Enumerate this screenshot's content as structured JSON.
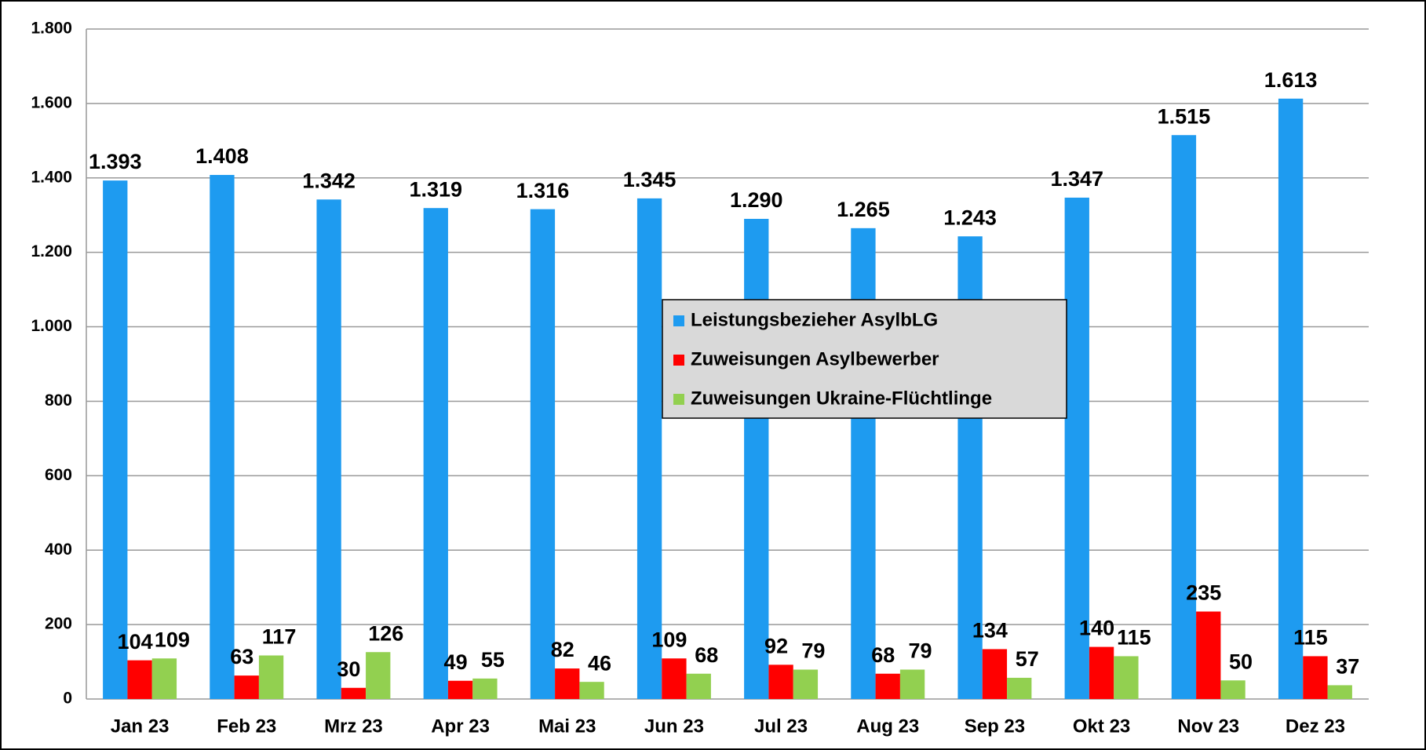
{
  "chart_data": {
    "type": "bar",
    "categories": [
      "Jan 23",
      "Feb 23",
      "Mrz 23",
      "Apr 23",
      "Mai 23",
      "Jun 23",
      "Jul 23",
      "Aug 23",
      "Sep 23",
      "Okt 23",
      "Nov 23",
      "Dez 23"
    ],
    "series": [
      {
        "name": "Leistungsbezieher AsylbLG",
        "color": "#1e9bf0",
        "values": [
          1393,
          1408,
          1342,
          1319,
          1316,
          1345,
          1290,
          1265,
          1243,
          1347,
          1515,
          1613
        ],
        "value_labels": [
          "1.393",
          "1.408",
          "1.342",
          "1.319",
          "1.316",
          "1.345",
          "1.290",
          "1.265",
          "1.243",
          "1.347",
          "1.515",
          "1.613"
        ]
      },
      {
        "name": "Zuweisungen Asylbewerber",
        "color": "#ff0000",
        "values": [
          104,
          63,
          30,
          49,
          82,
          109,
          92,
          68,
          134,
          140,
          235,
          115
        ]
      },
      {
        "name": "Zuweisungen Ukraine-Flüchtlinge",
        "color": "#92d050",
        "values": [
          109,
          117,
          126,
          55,
          46,
          68,
          79,
          79,
          57,
          115,
          50,
          37
        ]
      }
    ],
    "ylim": [
      0,
      1800
    ],
    "yticks": [
      0,
      200,
      400,
      600,
      800,
      {
        "value": 1000,
        "label": "1.000"
      },
      {
        "value": 1200,
        "label": "1.200"
      },
      {
        "value": 1400,
        "label": "1.400"
      },
      {
        "value": 1600,
        "label": "1.600"
      },
      {
        "value": 1800,
        "label": "1.800"
      }
    ],
    "grid": true,
    "legend": "center"
  }
}
